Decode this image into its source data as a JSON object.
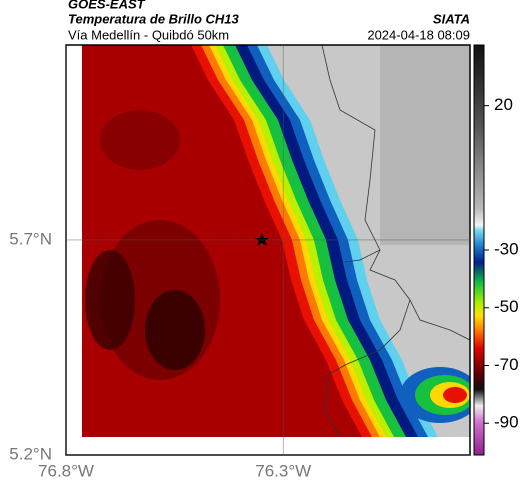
{
  "header": {
    "product": "GOES-EAST",
    "title": "Temperatura de Brillo CH13",
    "location": "Vía Medellín - Quibdó 50km",
    "source": "SIATA",
    "datetime": "2024-04-18 08:09"
  },
  "map": {
    "xlim": [
      -76.8,
      -75.87
    ],
    "ylim": [
      5.2,
      6.153
    ],
    "xticks": [
      {
        "value": -76.8,
        "label": "76.8°W"
      },
      {
        "value": -76.3,
        "label": "76.3°W"
      }
    ],
    "yticks": [
      {
        "value": 5.7,
        "label": "5.7°N"
      },
      {
        "value": 5.2,
        "label": "5.2°N"
      }
    ]
  },
  "colorbar": {
    "range": [
      -101,
      41
    ],
    "ticks": [
      20,
      -30,
      -50,
      -70,
      -90
    ]
  }
}
